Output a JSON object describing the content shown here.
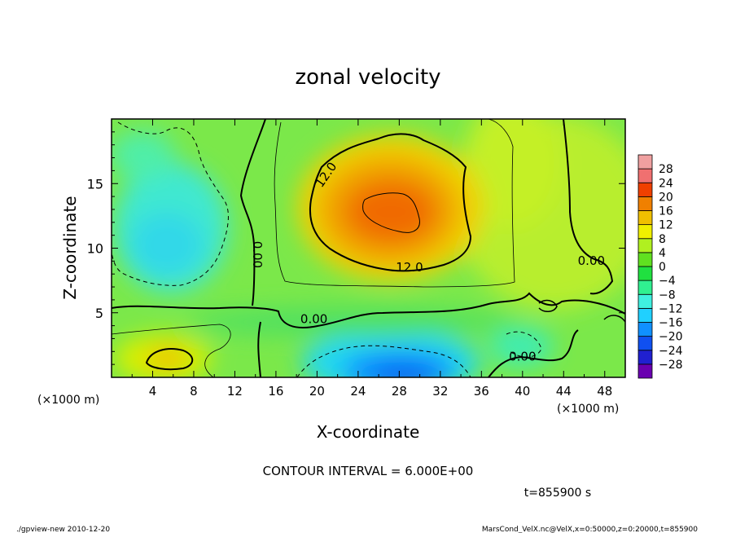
{
  "chart_data": {
    "type": "heatmap",
    "title": "zonal velocity",
    "xlabel": "X-coordinate",
    "ylabel": "Z-coordinate",
    "x_unit": "(×1000 m)",
    "x_unit_right": "(×1000 m)",
    "xlim": [
      0,
      50
    ],
    "ylim": [
      0,
      20
    ],
    "x_ticks": [
      4,
      8,
      12,
      16,
      20,
      24,
      28,
      32,
      36,
      40,
      44,
      48
    ],
    "y_ticks": [
      5,
      10,
      15
    ],
    "colorbar": {
      "levels": [
        -28,
        -24,
        -20,
        -16,
        -12,
        -8,
        -4,
        0,
        4,
        8,
        12,
        16,
        20,
        24,
        28
      ],
      "labels": [
        "28",
        "24",
        "20",
        "16",
        "12",
        "8",
        "4",
        "0",
        "−4",
        "−8",
        "−12",
        "−16",
        "−20",
        "−24",
        "−28"
      ],
      "colors": [
        "#6a00b0",
        "#2020d0",
        "#1050f0",
        "#1090ff",
        "#20d0ff",
        "#40f0e0",
        "#30f090",
        "#20e040",
        "#60e020",
        "#b0f020",
        "#f0f000",
        "#f0c000",
        "#f08000",
        "#f04000",
        "#f07070",
        "#f0a0a0"
      ]
    },
    "contour_labels": [
      {
        "text": "12.0",
        "x": 21.2,
        "z": 15.5
      },
      {
        "text": "12.0",
        "x": 29.0,
        "z": 8.2
      },
      {
        "text": "0.00",
        "x": 13.8,
        "z": 9.5
      },
      {
        "text": "0.00",
        "x": 19.7,
        "z": 4.2
      },
      {
        "text": "0.00",
        "x": 46.7,
        "z": 8.7
      },
      {
        "text": "0.00",
        "x": 40.0,
        "z": 1.3
      }
    ],
    "contour_interval_text": "CONTOUR INTERVAL = 6.000E+00",
    "time_text": "t=855900 s"
  },
  "footer": {
    "left": "./gpview-new  2010-12-20",
    "right": "MarsCond_VelX.nc@VelX,x=0:50000,z=0:20000,t=855900"
  }
}
